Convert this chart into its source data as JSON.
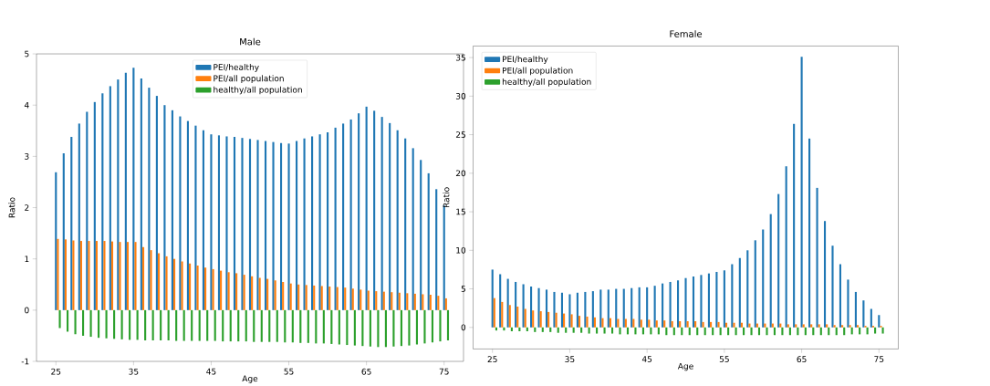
{
  "chart_data": [
    {
      "type": "bar",
      "title": "Male",
      "xlabel": "Age",
      "ylabel": "Ratio",
      "x": [
        25,
        26,
        27,
        28,
        29,
        30,
        31,
        32,
        33,
        34,
        35,
        36,
        37,
        38,
        39,
        40,
        41,
        42,
        43,
        44,
        45,
        46,
        47,
        48,
        49,
        50,
        51,
        52,
        53,
        54,
        55,
        56,
        57,
        58,
        59,
        60,
        61,
        62,
        63,
        64,
        65,
        66,
        67,
        68,
        69,
        70,
        71,
        72,
        73,
        74,
        75
      ],
      "series": [
        {
          "name": "PEI/healthy",
          "color": "#1f77b4",
          "values": [
            2.69,
            3.06,
            3.38,
            3.64,
            3.87,
            4.06,
            4.23,
            4.37,
            4.5,
            4.63,
            4.73,
            4.52,
            4.34,
            4.18,
            4.0,
            3.9,
            3.78,
            3.69,
            3.6,
            3.51,
            3.43,
            3.41,
            3.39,
            3.38,
            3.36,
            3.34,
            3.32,
            3.3,
            3.28,
            3.26,
            3.25,
            3.3,
            3.35,
            3.39,
            3.43,
            3.47,
            3.56,
            3.64,
            3.72,
            3.84,
            3.97,
            3.89,
            3.77,
            3.65,
            3.51,
            3.35,
            3.16,
            2.93,
            2.67,
            2.36,
            2.04
          ]
        },
        {
          "name": "PEI/all population",
          "color": "#ff7f0e",
          "values": [
            1.39,
            1.38,
            1.36,
            1.35,
            1.35,
            1.35,
            1.35,
            1.34,
            1.33,
            1.33,
            1.33,
            1.23,
            1.17,
            1.11,
            1.05,
            1.0,
            0.95,
            0.91,
            0.87,
            0.83,
            0.8,
            0.77,
            0.74,
            0.72,
            0.69,
            0.66,
            0.63,
            0.61,
            0.58,
            0.55,
            0.52,
            0.5,
            0.49,
            0.48,
            0.47,
            0.46,
            0.45,
            0.44,
            0.42,
            0.4,
            0.38,
            0.37,
            0.36,
            0.35,
            0.34,
            0.33,
            0.32,
            0.31,
            0.3,
            0.28,
            0.23
          ]
        },
        {
          "name": "healthy/all population",
          "color": "#2ca02c",
          "values": [
            -0.35,
            -0.42,
            -0.47,
            -0.5,
            -0.52,
            -0.54,
            -0.55,
            -0.56,
            -0.57,
            -0.58,
            -0.58,
            -0.59,
            -0.59,
            -0.59,
            -0.59,
            -0.6,
            -0.6,
            -0.6,
            -0.6,
            -0.6,
            -0.6,
            -0.61,
            -0.61,
            -0.61,
            -0.61,
            -0.62,
            -0.62,
            -0.62,
            -0.62,
            -0.63,
            -0.63,
            -0.64,
            -0.64,
            -0.65,
            -0.65,
            -0.66,
            -0.67,
            -0.68,
            -0.69,
            -0.7,
            -0.71,
            -0.72,
            -0.72,
            -0.71,
            -0.7,
            -0.69,
            -0.67,
            -0.65,
            -0.63,
            -0.61,
            -0.59
          ]
        }
      ],
      "xlim": [
        22.5,
        77.5
      ],
      "ylim": [
        -1,
        5
      ],
      "xticks": [
        25,
        35,
        45,
        55,
        65,
        75
      ],
      "yticks": [
        -1,
        0,
        1,
        2,
        3,
        4,
        5
      ],
      "legend": "top"
    },
    {
      "type": "bar",
      "title": "Female",
      "xlabel": "Age",
      "ylabel": "Ratio",
      "x": [
        25,
        26,
        27,
        28,
        29,
        30,
        31,
        32,
        33,
        34,
        35,
        36,
        37,
        38,
        39,
        40,
        41,
        42,
        43,
        44,
        45,
        46,
        47,
        48,
        49,
        50,
        51,
        52,
        53,
        54,
        55,
        56,
        57,
        58,
        59,
        60,
        61,
        62,
        63,
        64,
        65,
        66,
        67,
        68,
        69,
        70,
        71,
        72,
        73,
        74,
        75
      ],
      "series": [
        {
          "name": "PEI/healthy",
          "color": "#1f77b4",
          "values": [
            7.5,
            6.9,
            6.3,
            5.9,
            5.6,
            5.3,
            5.1,
            4.9,
            4.6,
            4.5,
            4.3,
            4.5,
            4.6,
            4.7,
            4.9,
            4.9,
            5.0,
            5.0,
            5.1,
            5.2,
            5.2,
            5.4,
            5.7,
            5.9,
            6.1,
            6.4,
            6.6,
            6.8,
            7.0,
            7.2,
            7.4,
            8.2,
            9.0,
            10.0,
            11.3,
            12.7,
            14.7,
            17.3,
            20.9,
            26.4,
            35.1,
            24.5,
            18.1,
            13.8,
            10.6,
            8.2,
            6.2,
            4.6,
            3.5,
            2.4,
            1.6
          ]
        },
        {
          "name": "PEI/all population",
          "color": "#ff7f0e",
          "values": [
            3.8,
            3.3,
            2.9,
            2.7,
            2.4,
            2.2,
            2.1,
            2.0,
            1.9,
            1.8,
            1.7,
            1.5,
            1.4,
            1.3,
            1.2,
            1.2,
            1.1,
            1.1,
            1.1,
            1.0,
            1.0,
            0.9,
            0.9,
            0.8,
            0.8,
            0.8,
            0.8,
            0.7,
            0.7,
            0.7,
            0.6,
            0.6,
            0.6,
            0.5,
            0.5,
            0.5,
            0.5,
            0.5,
            0.4,
            0.4,
            0.4,
            0.4,
            0.4,
            0.4,
            0.3,
            0.3,
            0.3,
            0.3,
            0.2,
            0.2,
            0.2
          ]
        },
        {
          "name": "healthy/all population",
          "color": "#2ca02c",
          "values": [
            -0.4,
            -0.4,
            -0.5,
            -0.5,
            -0.5,
            -0.6,
            -0.6,
            -0.6,
            -0.7,
            -0.7,
            -0.7,
            -0.7,
            -0.8,
            -0.8,
            -0.8,
            -0.8,
            -0.9,
            -0.9,
            -0.9,
            -0.9,
            -0.9,
            -0.9,
            -1.0,
            -1.0,
            -1.0,
            -1.0,
            -1.0,
            -1.0,
            -1.0,
            -1.0,
            -1.0,
            -1.0,
            -1.0,
            -1.0,
            -1.0,
            -1.0,
            -1.0,
            -1.0,
            -1.0,
            -1.0,
            -1.0,
            -1.0,
            -1.0,
            -1.0,
            -1.0,
            -1.0,
            -0.9,
            -0.9,
            -0.9,
            -0.8,
            -0.8
          ]
        }
      ],
      "xlim": [
        22.5,
        77.5
      ],
      "ylim": [
        -2.8,
        36.5
      ],
      "xticks": [
        25,
        35,
        45,
        55,
        65,
        75
      ],
      "yticks": [
        0,
        5,
        10,
        15,
        20,
        25,
        30,
        35
      ],
      "legend": "top left"
    }
  ]
}
